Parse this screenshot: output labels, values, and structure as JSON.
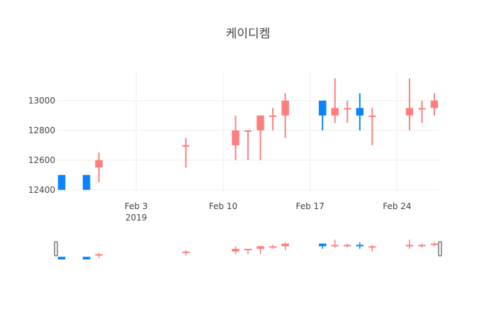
{
  "chart_data": {
    "type": "candlestick",
    "title": "케이디켐",
    "colors": {
      "increasing": "#ff7f7f",
      "decreasing": "#0a84ff"
    },
    "ylim": [
      12380,
      13200
    ],
    "y_ticks": [
      12400,
      12600,
      12800,
      13000
    ],
    "x_tick_labels": [
      "Feb 3",
      "Feb 10",
      "Feb 17",
      "Feb 24"
    ],
    "x_tick_dates": [
      "2019-02-03",
      "2019-02-10",
      "2019-02-17",
      "2019-02-24"
    ],
    "x_year_label": "2019",
    "x_range": [
      "2019-01-28",
      "2019-02-27"
    ],
    "grid": true,
    "range_slider": true,
    "candles": [
      {
        "date": "2019-01-28",
        "open": 12500,
        "high": 12500,
        "low": 12400,
        "close": 12400
      },
      {
        "date": "2019-01-30",
        "open": 12500,
        "high": 12500,
        "low": 12400,
        "close": 12400
      },
      {
        "date": "2019-01-31",
        "open": 12550,
        "high": 12650,
        "low": 12450,
        "close": 12600
      },
      {
        "date": "2019-02-07",
        "open": 12700,
        "high": 12750,
        "low": 12550,
        "close": 12700
      },
      {
        "date": "2019-02-11",
        "open": 12700,
        "high": 12900,
        "low": 12600,
        "close": 12800
      },
      {
        "date": "2019-02-12",
        "open": 12800,
        "high": 12800,
        "low": 12600,
        "close": 12800
      },
      {
        "date": "2019-02-13",
        "open": 12800,
        "high": 12900,
        "low": 12600,
        "close": 12900
      },
      {
        "date": "2019-02-14",
        "open": 12900,
        "high": 12950,
        "low": 12800,
        "close": 12900
      },
      {
        "date": "2019-02-15",
        "open": 12900,
        "high": 13050,
        "low": 12750,
        "close": 13000
      },
      {
        "date": "2019-02-18",
        "open": 13000,
        "high": 13000,
        "low": 12800,
        "close": 12900
      },
      {
        "date": "2019-02-19",
        "open": 12900,
        "high": 13150,
        "low": 12850,
        "close": 12950
      },
      {
        "date": "2019-02-20",
        "open": 12950,
        "high": 13000,
        "low": 12850,
        "close": 12950
      },
      {
        "date": "2019-02-21",
        "open": 12950,
        "high": 13050,
        "low": 12800,
        "close": 12900
      },
      {
        "date": "2019-02-22",
        "open": 12900,
        "high": 12950,
        "low": 12700,
        "close": 12900
      },
      {
        "date": "2019-02-25",
        "open": 12900,
        "high": 13150,
        "low": 12800,
        "close": 12950
      },
      {
        "date": "2019-02-26",
        "open": 12950,
        "high": 13000,
        "low": 12850,
        "close": 12950
      },
      {
        "date": "2019-02-27",
        "open": 12950,
        "high": 13050,
        "low": 12900,
        "close": 13000
      }
    ]
  }
}
